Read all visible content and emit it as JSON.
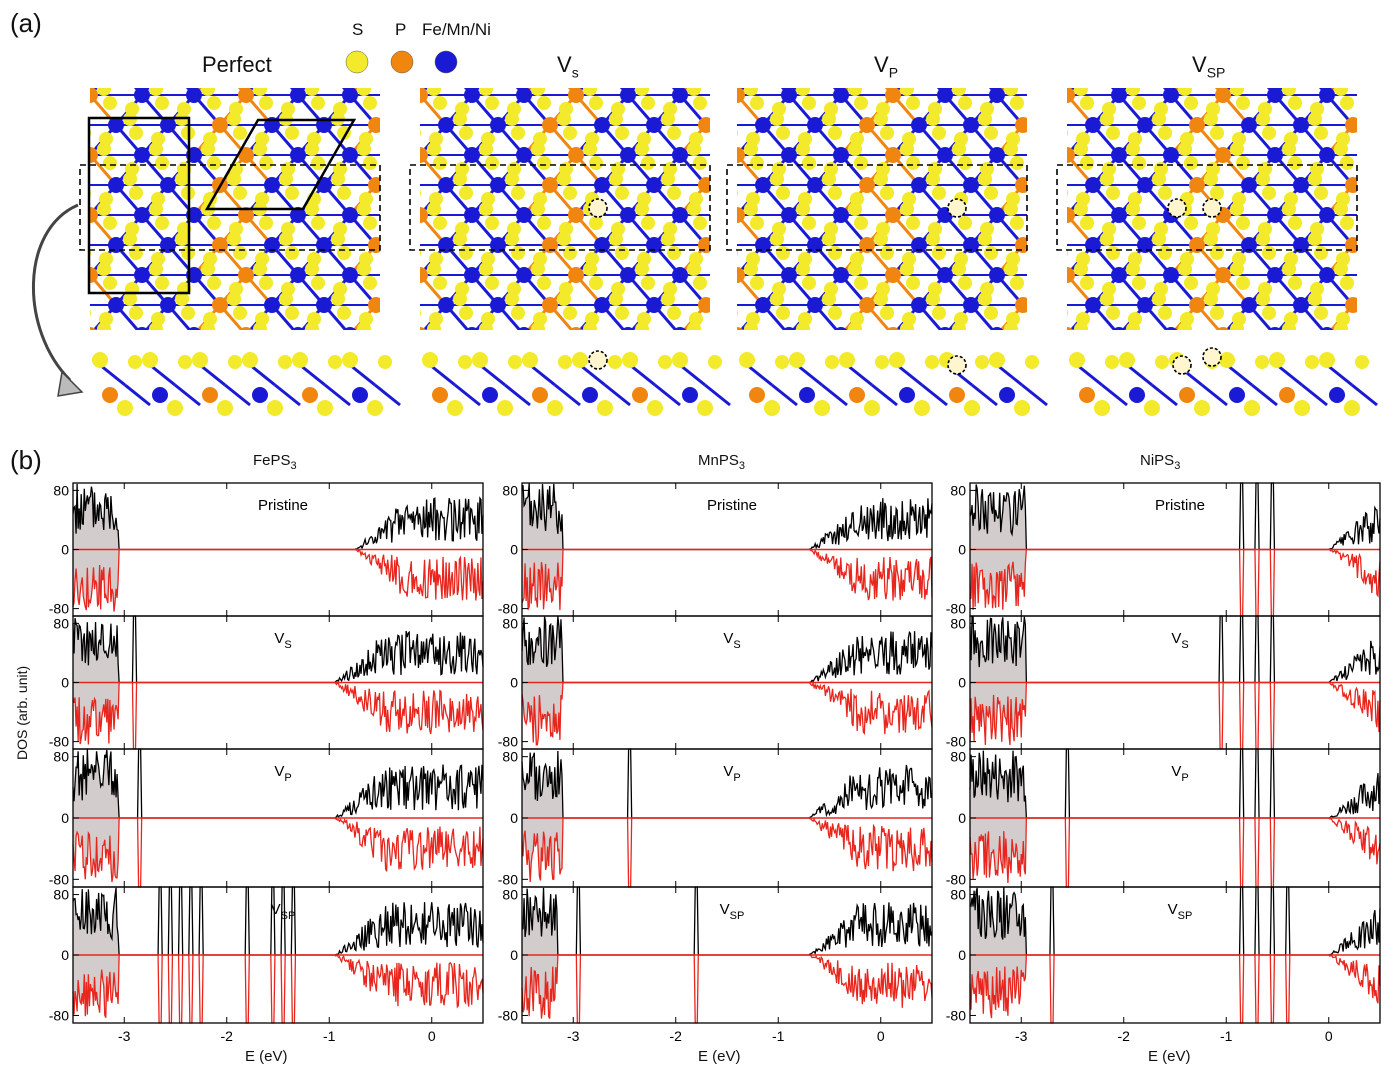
{
  "panel_a": {
    "label": "(a)",
    "legend": {
      "items": [
        {
          "name": "S",
          "color": "#f2ea2a"
        },
        {
          "name": "P",
          "color": "#f0850f"
        },
        {
          "name": "Fe/Mn/Ni",
          "color": "#1a1ad4"
        }
      ]
    },
    "structures": [
      {
        "title": "Perfect",
        "base": "",
        "sub": "",
        "defect": "none"
      },
      {
        "title": "V",
        "base": "V",
        "sub": "s",
        "defect": "Vs"
      },
      {
        "title": "V",
        "base": "V",
        "sub": "P",
        "defect": "VP"
      },
      {
        "title": "V",
        "base": "V",
        "sub": "SP",
        "defect": "VSP"
      }
    ]
  },
  "panel_b": {
    "label": "(b)",
    "ylabel": "DOS (arb. unit)",
    "xlabel": "E (eV)",
    "xlim": [
      -3.5,
      0.5
    ],
    "ylim": [
      -90,
      90
    ],
    "xticks": [
      -3,
      -2,
      -1,
      0
    ],
    "yticks": [
      80,
      0,
      -80
    ],
    "columns": [
      {
        "base": "FePS",
        "sub": "3"
      },
      {
        "base": "MnPS",
        "sub": "3"
      },
      {
        "base": "NiPS",
        "sub": "3"
      }
    ],
    "rows": [
      {
        "base": "Pristine",
        "sub": ""
      },
      {
        "base": "V",
        "sub": "S"
      },
      {
        "base": "V",
        "sub": "P"
      },
      {
        "base": "V",
        "sub": "SP"
      }
    ],
    "colors": {
      "spin_up": "#000000",
      "spin_down": "#e8261e",
      "fill": "#d3cccc"
    }
  },
  "chart_data": {
    "type": "line",
    "title": "",
    "xlabel": "E (eV)",
    "ylabel": "DOS (arb. unit)",
    "xlim": [
      -3.5,
      0.5
    ],
    "ylim": [
      -90,
      90
    ],
    "grid": false,
    "note_series": "Each panel has spin-up (black, positive) and spin-down (red, negative) DOS; shaded region is occupied valence band",
    "panels": [
      {
        "material": "FePS3",
        "case": "Pristine",
        "valence_edge": -3.05,
        "conduction_onset": -0.75,
        "gap_states": []
      },
      {
        "material": "FePS3",
        "case": "VS",
        "valence_edge": -3.05,
        "conduction_onset": -0.95,
        "gap_states": [
          -2.9
        ]
      },
      {
        "material": "FePS3",
        "case": "VP",
        "valence_edge": -3.05,
        "conduction_onset": -0.95,
        "gap_states": [
          -2.85
        ]
      },
      {
        "material": "FePS3",
        "case": "VSP",
        "valence_edge": -3.05,
        "conduction_onset": -0.95,
        "gap_states": [
          -2.65,
          -2.55,
          -2.45,
          -2.35,
          -2.25,
          -1.8,
          -1.55,
          -1.45,
          -1.35
        ]
      },
      {
        "material": "MnPS3",
        "case": "Pristine",
        "valence_edge": -3.1,
        "conduction_onset": -0.7,
        "gap_states": []
      },
      {
        "material": "MnPS3",
        "case": "VS",
        "valence_edge": -3.1,
        "conduction_onset": -0.7,
        "gap_states": []
      },
      {
        "material": "MnPS3",
        "case": "VP",
        "valence_edge": -3.1,
        "conduction_onset": -0.7,
        "gap_states": [
          -2.45
        ]
      },
      {
        "material": "MnPS3",
        "case": "VSP",
        "valence_edge": -3.15,
        "conduction_onset": -0.7,
        "gap_states": [
          -2.95,
          -1.8
        ]
      },
      {
        "material": "NiPS3",
        "case": "Pristine",
        "valence_edge": -2.95,
        "conduction_onset": 0.0,
        "gap_states": [
          -0.85,
          -0.7,
          -0.55
        ]
      },
      {
        "material": "NiPS3",
        "case": "VS",
        "valence_edge": -2.95,
        "conduction_onset": 0.0,
        "gap_states": [
          -1.05,
          -0.85,
          -0.7,
          -0.55
        ]
      },
      {
        "material": "NiPS3",
        "case": "VP",
        "valence_edge": -2.95,
        "conduction_onset": 0.0,
        "gap_states": [
          -2.55,
          -0.85,
          -0.7,
          -0.55
        ]
      },
      {
        "material": "NiPS3",
        "case": "VSP",
        "valence_edge": -2.95,
        "conduction_onset": 0.0,
        "gap_states": [
          -2.7,
          -0.85,
          -0.7,
          -0.55,
          -0.4
        ]
      }
    ]
  }
}
